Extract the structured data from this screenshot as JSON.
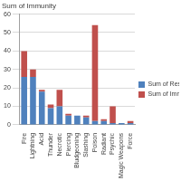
{
  "chart_data": {
    "type": "bar",
    "title": "Sum of Immunity",
    "categories": [
      "Fire",
      "Lightning",
      "Acid",
      "Thunder",
      "Necrotic",
      "Piercing",
      "Bludgeoning",
      "Slashing",
      "Poison",
      "Radiant",
      "Psychic",
      "Magic Weapons",
      "Force"
    ],
    "series": [
      {
        "name": "Sum of Resistance",
        "color": "#4f81bd",
        "values": [
          26,
          26,
          18,
          9,
          10,
          5,
          5,
          4,
          2,
          2,
          1,
          1,
          1
        ]
      },
      {
        "name": "Sum of Immunity",
        "color": "#c0504d",
        "values": [
          14,
          4,
          1,
          2,
          9,
          1,
          0,
          1,
          52,
          1,
          9,
          0,
          1
        ]
      }
    ],
    "stacked": true,
    "ylim": [
      0,
      60
    ],
    "yticks": [
      0,
      10,
      20,
      30,
      40,
      50,
      60
    ],
    "grid": true,
    "legend": "right"
  }
}
